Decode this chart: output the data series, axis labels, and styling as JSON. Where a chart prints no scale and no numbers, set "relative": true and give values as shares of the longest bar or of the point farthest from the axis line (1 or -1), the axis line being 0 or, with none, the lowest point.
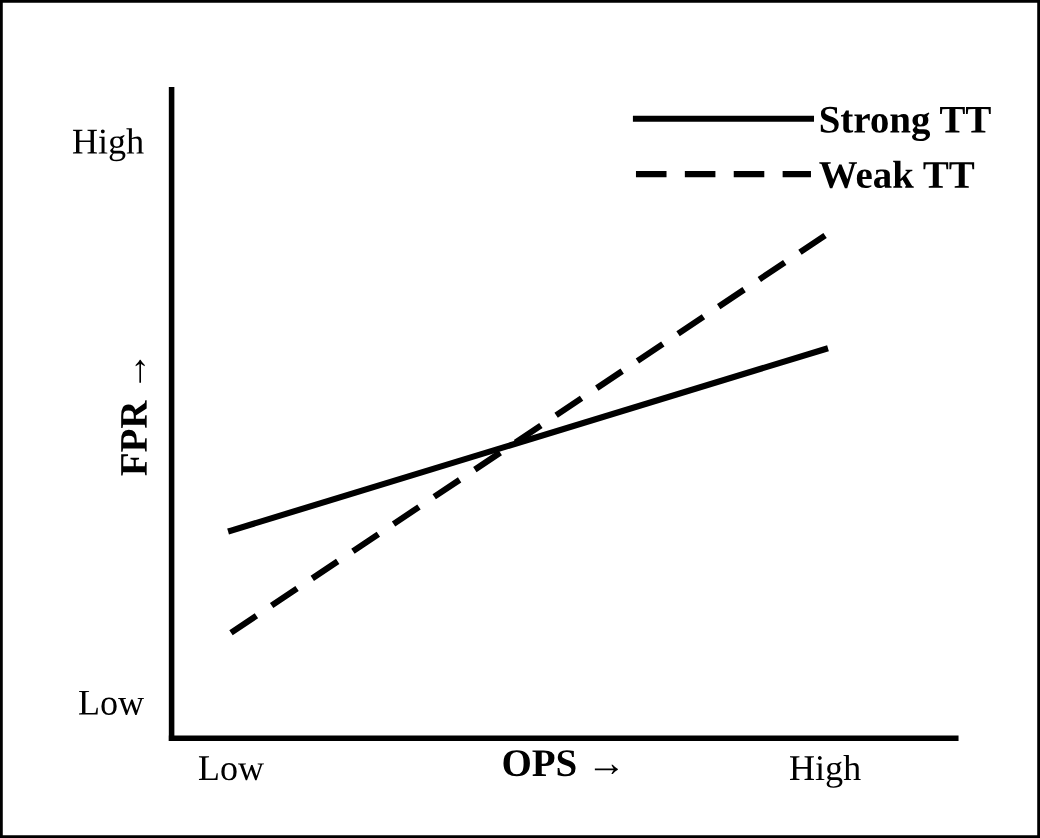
{
  "chart_data": {
    "type": "line",
    "relative": true,
    "xlabel": "OPS →",
    "ylabel": "FPR →",
    "categories": [
      "Low",
      "High"
    ],
    "annotations": [
      "Low",
      "High"
    ],
    "legend": "top right",
    "grid": false,
    "marker": "none",
    "series": [
      {
        "name": "Strong TT",
        "color": "#000000",
        "line_style": "solid",
        "values": [
          0.413,
          0.774
        ]
      },
      {
        "name": "Weak TT",
        "color": "#000000",
        "line_style": "dashed",
        "values": [
          0.21,
          1.0
        ]
      }
    ]
  }
}
